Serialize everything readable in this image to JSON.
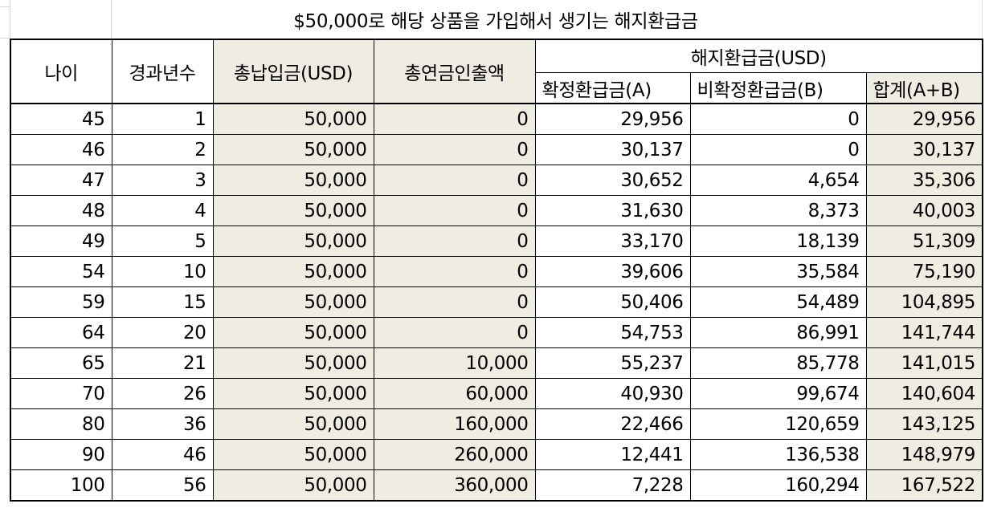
{
  "sheet": {
    "title": "$50,000로 해당 상품을 가입해서 생기는 해지환급금"
  },
  "table": {
    "headers": {
      "age": "나이",
      "years_elapsed": "경과년수",
      "total_paid": "총납입금(USD)",
      "total_annuity_withdrawal": "총연금인출액",
      "surrender_group": "해지환급금(USD)",
      "guaranteed": "확정환급금(A)",
      "non_guaranteed": "비확정환급금(B)",
      "total": "합계(A+B)"
    },
    "rows": [
      {
        "age": "45",
        "years": "1",
        "paid": "50,000",
        "withdrawal": "0",
        "a": "29,956",
        "b": "0",
        "sum": "29,956"
      },
      {
        "age": "46",
        "years": "2",
        "paid": "50,000",
        "withdrawal": "0",
        "a": "30,137",
        "b": "0",
        "sum": "30,137"
      },
      {
        "age": "47",
        "years": "3",
        "paid": "50,000",
        "withdrawal": "0",
        "a": "30,652",
        "b": "4,654",
        "sum": "35,306"
      },
      {
        "age": "48",
        "years": "4",
        "paid": "50,000",
        "withdrawal": "0",
        "a": "31,630",
        "b": "8,373",
        "sum": "40,003"
      },
      {
        "age": "49",
        "years": "5",
        "paid": "50,000",
        "withdrawal": "0",
        "a": "33,170",
        "b": "18,139",
        "sum": "51,309"
      },
      {
        "age": "54",
        "years": "10",
        "paid": "50,000",
        "withdrawal": "0",
        "a": "39,606",
        "b": "35,584",
        "sum": "75,190"
      },
      {
        "age": "59",
        "years": "15",
        "paid": "50,000",
        "withdrawal": "0",
        "a": "50,406",
        "b": "54,489",
        "sum": "104,895"
      },
      {
        "age": "64",
        "years": "20",
        "paid": "50,000",
        "withdrawal": "0",
        "a": "54,753",
        "b": "86,991",
        "sum": "141,744"
      },
      {
        "age": "65",
        "years": "21",
        "paid": "50,000",
        "withdrawal": "10,000",
        "a": "55,237",
        "b": "85,778",
        "sum": "141,015"
      },
      {
        "age": "70",
        "years": "26",
        "paid": "50,000",
        "withdrawal": "60,000",
        "a": "40,930",
        "b": "99,674",
        "sum": "140,604"
      },
      {
        "age": "80",
        "years": "36",
        "paid": "50,000",
        "withdrawal": "160,000",
        "a": "22,466",
        "b": "120,659",
        "sum": "143,125"
      },
      {
        "age": "90",
        "years": "46",
        "paid": "50,000",
        "withdrawal": "260,000",
        "a": "12,441",
        "b": "136,538",
        "sum": "148,979"
      },
      {
        "age": "100",
        "years": "56",
        "paid": "50,000",
        "withdrawal": "360,000",
        "a": "7,228",
        "b": "160,294",
        "sum": "167,522"
      }
    ]
  },
  "colors": {
    "shaded_cell": "#efece2",
    "border": "#000000",
    "gridline": "#d8d8d8"
  }
}
